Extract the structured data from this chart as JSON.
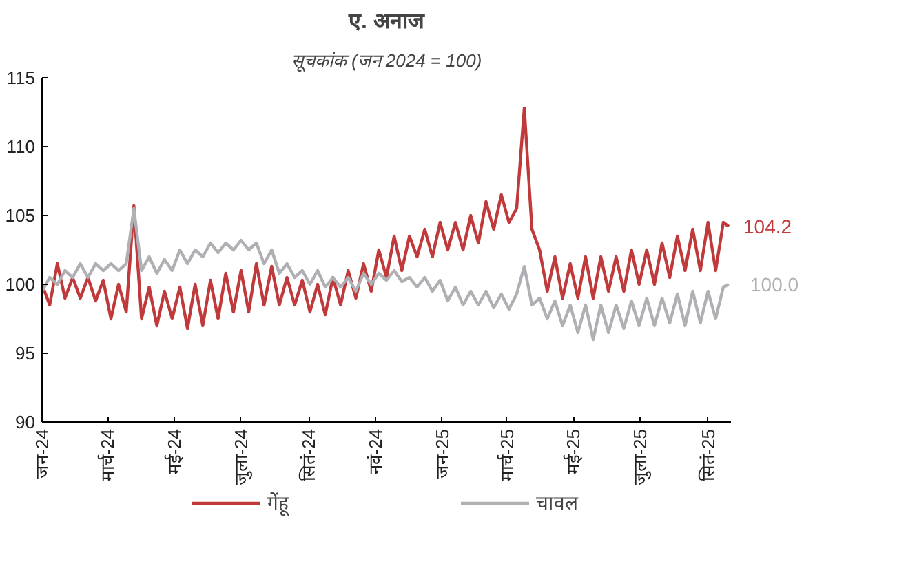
{
  "chart_data": {
    "type": "line",
    "title": "ए. अनाज",
    "subtitle": "सूचकांक (जन 2024 = 100)",
    "x": [
      "2024-01-01",
      "2024-01-08",
      "2024-01-15",
      "2024-01-22",
      "2024-01-29",
      "2024-02-05",
      "2024-02-12",
      "2024-02-19",
      "2024-02-26",
      "2024-03-04",
      "2024-03-11",
      "2024-03-18",
      "2024-03-25",
      "2024-04-01",
      "2024-04-08",
      "2024-04-15",
      "2024-04-22",
      "2024-04-29",
      "2024-05-06",
      "2024-05-13",
      "2024-05-20",
      "2024-05-27",
      "2024-06-03",
      "2024-06-10",
      "2024-06-17",
      "2024-06-24",
      "2024-07-01",
      "2024-07-08",
      "2024-07-15",
      "2024-07-22",
      "2024-07-29",
      "2024-08-05",
      "2024-08-12",
      "2024-08-19",
      "2024-08-26",
      "2024-09-02",
      "2024-09-09",
      "2024-09-16",
      "2024-09-23",
      "2024-09-30",
      "2024-10-07",
      "2024-10-14",
      "2024-10-21",
      "2024-10-28",
      "2024-11-04",
      "2024-11-11",
      "2024-11-18",
      "2024-11-25",
      "2024-12-02",
      "2024-12-09",
      "2024-12-16",
      "2024-12-23",
      "2024-12-30",
      "2025-01-06",
      "2025-01-13",
      "2025-01-20",
      "2025-01-27",
      "2025-02-03",
      "2025-02-10",
      "2025-02-17",
      "2025-02-24",
      "2025-03-03",
      "2025-03-10",
      "2025-03-17",
      "2025-03-24",
      "2025-03-31",
      "2025-04-07",
      "2025-04-14",
      "2025-04-21",
      "2025-04-28",
      "2025-05-05",
      "2025-05-12",
      "2025-05-19",
      "2025-05-26",
      "2025-06-02",
      "2025-06-09",
      "2025-06-16",
      "2025-06-23",
      "2025-06-30",
      "2025-07-07",
      "2025-07-14",
      "2025-07-21",
      "2025-07-28",
      "2025-08-04",
      "2025-08-11",
      "2025-08-18",
      "2025-08-25",
      "2025-09-01",
      "2025-09-08",
      "2025-09-15",
      "2025-09-20"
    ],
    "series": [
      {
        "name": "गेंहू",
        "color": "#c0393b",
        "values": [
          100,
          98.5,
          101.5,
          99,
          100.5,
          99,
          100.5,
          98.8,
          100.3,
          97.5,
          100,
          98,
          105.7,
          97.5,
          99.8,
          97,
          99.5,
          97.5,
          99.8,
          96.8,
          100,
          97,
          100.3,
          97.5,
          100.8,
          98,
          101,
          98,
          101.5,
          98.5,
          101.3,
          98.5,
          100.5,
          98.5,
          100.3,
          98,
          100,
          97.8,
          100.5,
          98.5,
          101,
          99,
          101.5,
          99.5,
          102.5,
          100.5,
          103.5,
          101,
          103.5,
          102,
          104,
          102,
          104.5,
          102.5,
          104.5,
          102.5,
          105,
          103,
          106,
          104,
          106.5,
          104.5,
          105.5,
          112.8,
          104,
          102.5,
          99.5,
          102,
          99,
          101.5,
          99,
          102,
          99,
          102,
          99.5,
          102,
          99.5,
          102.5,
          100,
          102.5,
          100,
          103,
          100.5,
          103.5,
          101,
          104,
          101,
          104.5,
          101,
          104.5,
          104.2
        ]
      },
      {
        "name": "चावल",
        "color": "#b0b0b4",
        "values": [
          99.5,
          100.5,
          100,
          101,
          100.5,
          101.5,
          100.5,
          101.5,
          101,
          101.5,
          101,
          101.5,
          105.5,
          101,
          102,
          100.8,
          101.8,
          101,
          102.5,
          101.5,
          102.5,
          102,
          103,
          102.3,
          103,
          102.5,
          103.2,
          102.5,
          103,
          101.5,
          102.5,
          100.8,
          101.5,
          100.5,
          101,
          100,
          101,
          99.8,
          100.5,
          99.8,
          100.5,
          99.5,
          100.8,
          100,
          100.8,
          100.3,
          101,
          100.2,
          100.5,
          99.8,
          100.5,
          99.5,
          100.3,
          98.8,
          99.8,
          98.5,
          99.5,
          98.5,
          99.5,
          98.3,
          99.3,
          98.2,
          99.3,
          101.3,
          98.5,
          99,
          97.5,
          98.8,
          97,
          98.5,
          96.5,
          98.5,
          96,
          98.5,
          96.5,
          98.5,
          96.8,
          98.8,
          97,
          99,
          97,
          99,
          97.2,
          99.3,
          97,
          99.5,
          97.2,
          99.5,
          97.5,
          99.8,
          100.0
        ]
      }
    ],
    "xlim": [
      "2024-01-01",
      "2025-09-22"
    ],
    "xticks": [
      {
        "value": "2024-01-01",
        "label": "जन-24"
      },
      {
        "value": "2024-03-01",
        "label": "मार्च-24"
      },
      {
        "value": "2024-05-01",
        "label": "मई-24"
      },
      {
        "value": "2024-07-01",
        "label": "जुला-24"
      },
      {
        "value": "2024-09-01",
        "label": "सितं-24"
      },
      {
        "value": "2024-11-01",
        "label": "नवं-24"
      },
      {
        "value": "2025-01-01",
        "label": "जन-25"
      },
      {
        "value": "2025-03-01",
        "label": "मार्च-25"
      },
      {
        "value": "2025-05-01",
        "label": "मई-25"
      },
      {
        "value": "2025-07-01",
        "label": "जुला-25"
      },
      {
        "value": "2025-09-01",
        "label": "सितं-25"
      }
    ],
    "ylim": [
      90,
      115
    ],
    "yticks": [
      90,
      95,
      100,
      105,
      110,
      115
    ],
    "annotations": [
      {
        "text": "104.2",
        "x": "2025-09-20",
        "y": 104.2
      },
      {
        "text": "100.0",
        "x": "2025-09-20",
        "y": 100.0
      }
    ],
    "grid": false,
    "legend": "bottom",
    "marker": "none",
    "line_style": "solid"
  }
}
